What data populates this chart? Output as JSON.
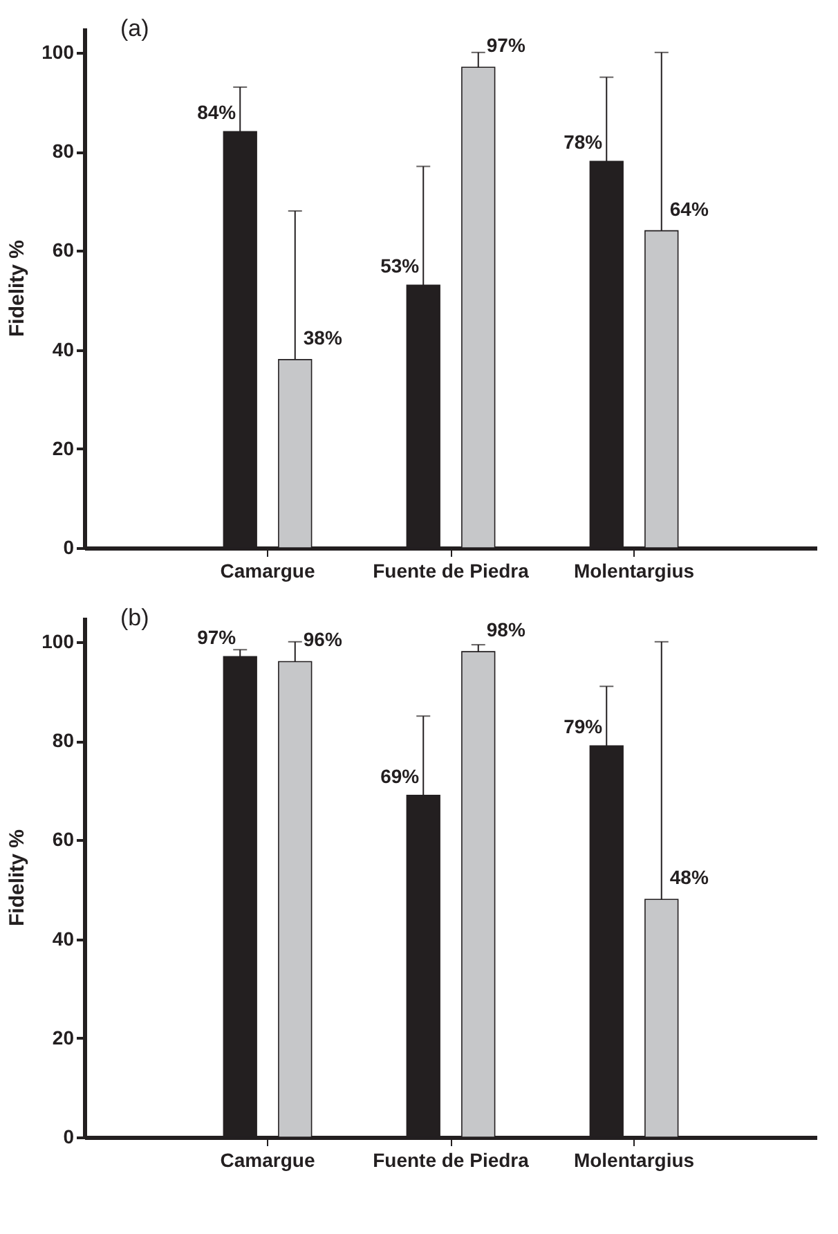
{
  "chart_data": [
    {
      "type": "bar",
      "title": "(a)",
      "ylabel": "Fidelity %",
      "categories": [
        "Camargue",
        "Fuente de Piedra",
        "Molentargius"
      ],
      "ylim": [
        0,
        105
      ],
      "yticks": [
        0,
        20,
        40,
        60,
        80,
        100
      ],
      "series": [
        {
          "color": "#231f20",
          "values": [
            84,
            53,
            78
          ],
          "errors": [
            [
              84,
              93
            ],
            [
              53,
              77
            ],
            [
              78,
              95
            ]
          ],
          "value_labels": [
            "84%",
            "53%",
            "78%"
          ]
        },
        {
          "color": "#c6c7c9",
          "values": [
            38,
            97,
            64
          ],
          "errors": [
            [
              38,
              68
            ],
            [
              97,
              100
            ],
            [
              64,
              100
            ]
          ],
          "value_labels": [
            "38%",
            "97%",
            "64%"
          ]
        }
      ]
    },
    {
      "type": "bar",
      "title": "(b)",
      "ylabel": "Fidelity %",
      "categories": [
        "Camargue",
        "Fuente de Piedra",
        "Molentargius"
      ],
      "ylim": [
        0,
        105
      ],
      "yticks": [
        0,
        20,
        40,
        60,
        80,
        100
      ],
      "series": [
        {
          "color": "#231f20",
          "values": [
            97,
            69,
            79
          ],
          "errors": [
            [
              97,
              98.4
            ],
            [
              69,
              85
            ],
            [
              79,
              91
            ]
          ],
          "value_labels": [
            "97%",
            "69%",
            "79%"
          ]
        },
        {
          "color": "#c6c7c9",
          "values": [
            96,
            98,
            48
          ],
          "errors": [
            [
              96,
              100
            ],
            [
              98,
              99.4
            ],
            [
              48,
              100
            ]
          ],
          "value_labels": [
            "96%",
            "98%",
            "48%"
          ]
        }
      ]
    }
  ]
}
